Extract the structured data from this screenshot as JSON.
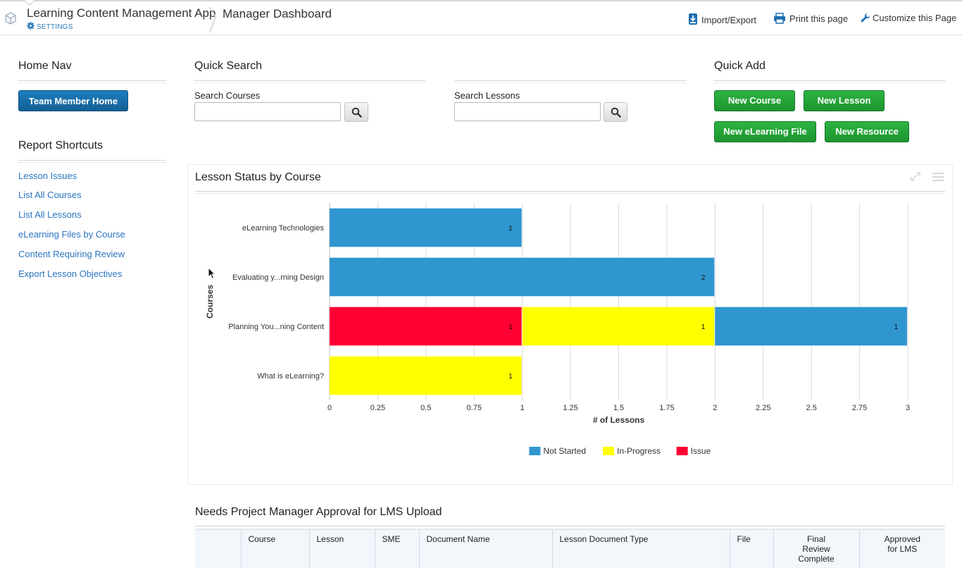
{
  "header": {
    "app_title": "Learning Content Management App",
    "settings_label": "SETTINGS",
    "page_name": "Manager Dashboard",
    "actions": {
      "import_export": "Import/Export",
      "print": "Print this page",
      "customize": "Customize this Page"
    }
  },
  "home_nav": {
    "title": "Home Nav",
    "team_member_button": "Team Member Home"
  },
  "report_shortcuts": {
    "title": "Report Shortcuts",
    "items": [
      "Lesson Issues",
      "List All Courses",
      "List All Lessons",
      "eLearning Files by Course",
      "Content Requiring Review",
      "Export Lesson Objectives"
    ]
  },
  "quick_search": {
    "title": "Quick Search",
    "courses_label": "Search Courses",
    "courses_value": "",
    "lessons_label": "Search Lessons",
    "lessons_value": ""
  },
  "quick_add": {
    "title": "Quick Add",
    "new_course": "New Course",
    "new_lesson": "New Lesson",
    "new_elearning_file": "New eLearning File",
    "new_resource": "New Resource"
  },
  "chart_panel": {
    "title": "Lesson Status by Course"
  },
  "chart_data": {
    "type": "bar",
    "orientation": "horizontal",
    "stacked": true,
    "categories": [
      "eLearning Technologies",
      "Evaluating y...rning Design",
      "Planning You...ning Content",
      "What is eLearning?"
    ],
    "series": [
      {
        "name": "Issue",
        "color": "#ff0033",
        "values": [
          0,
          0,
          1,
          0
        ]
      },
      {
        "name": "In-Progress",
        "color": "#ffff00",
        "values": [
          0,
          0,
          1,
          1
        ]
      },
      {
        "name": "Not Started",
        "color": "#2f96d0",
        "values": [
          1,
          2,
          1,
          0
        ]
      }
    ],
    "legend": [
      {
        "name": "Not Started",
        "color": "#2f96d0"
      },
      {
        "name": "In-Progress",
        "color": "#ffff00"
      },
      {
        "name": "Issue",
        "color": "#ff0033"
      }
    ],
    "xlabel": "# of Lessons",
    "ylabel": "Courses",
    "xlim": [
      0,
      3
    ],
    "x_ticks": [
      "0",
      "0.25",
      "0.5",
      "0.75",
      "1",
      "1.25",
      "1.5",
      "1.75",
      "2",
      "2.25",
      "2.5",
      "2.75",
      "3"
    ],
    "grid": true,
    "legend_position": "bottom"
  },
  "approval_table": {
    "title": "Needs Project Manager Approval for LMS Upload",
    "columns": [
      "",
      "Course",
      "Lesson",
      "SME",
      "Document Name",
      "Lesson Document Type",
      "File",
      "Final Review Complete",
      "Approved for LMS"
    ]
  }
}
